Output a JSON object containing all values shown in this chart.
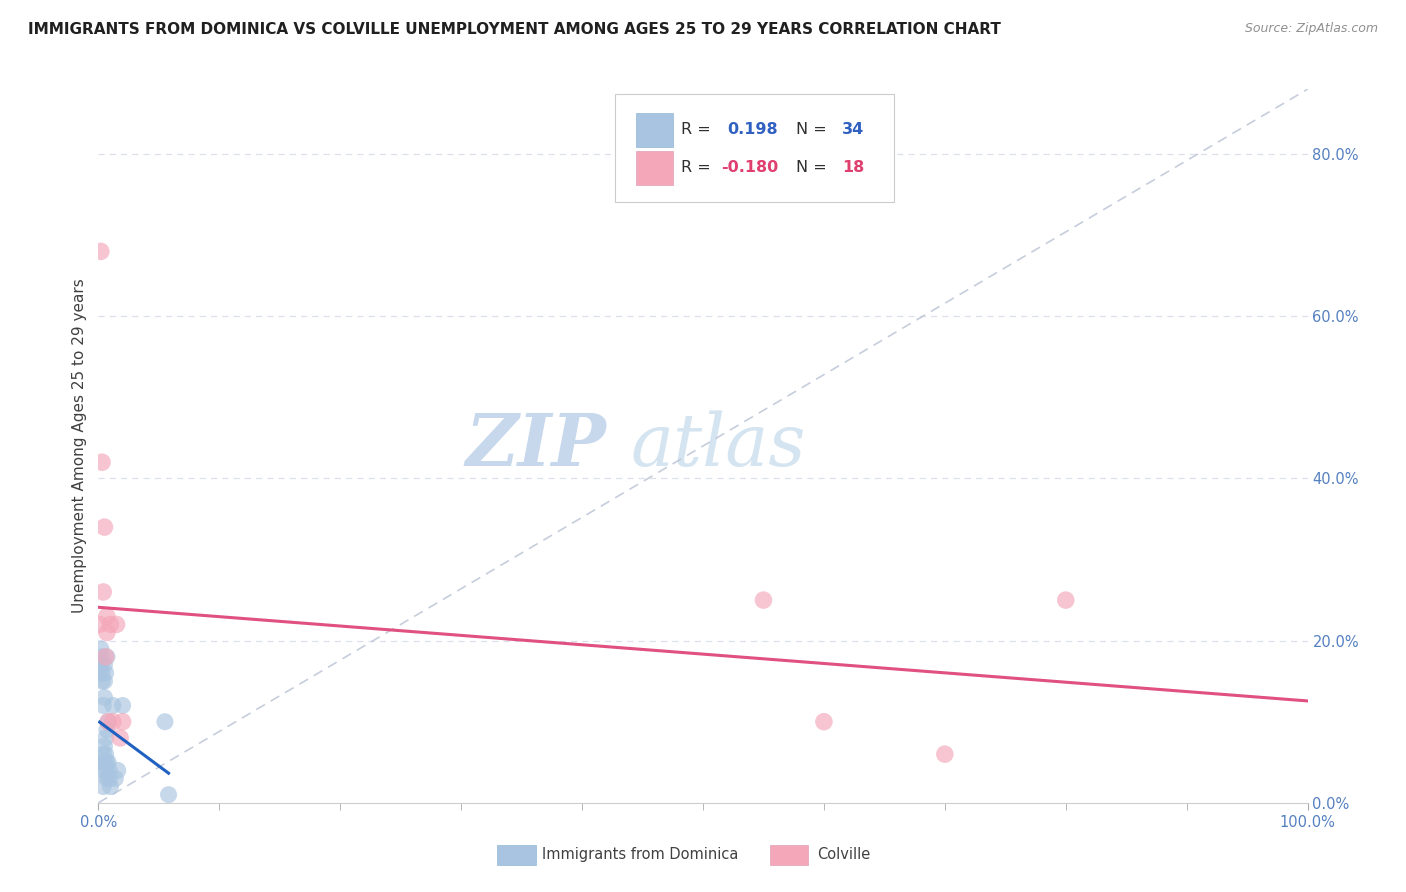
{
  "title": "IMMIGRANTS FROM DOMINICA VS COLVILLE UNEMPLOYMENT AMONG AGES 25 TO 29 YEARS CORRELATION CHART",
  "source": "Source: ZipAtlas.com",
  "ylabel": "Unemployment Among Ages 25 to 29 years",
  "xlim": [
    0,
    1.0
  ],
  "ylim": [
    0,
    0.88
  ],
  "xtick_positions": [
    0.0,
    1.0
  ],
  "xticklabels": [
    "0.0%",
    "100.0%"
  ],
  "ytick_positions": [
    0.0,
    0.2,
    0.4,
    0.6,
    0.8
  ],
  "yticklabels_right": [
    "0.0%",
    "20.0%",
    "40.0%",
    "60.0%",
    "80.0%"
  ],
  "blue_R": 0.198,
  "blue_N": 34,
  "pink_R": -0.18,
  "pink_N": 18,
  "blue_color": "#a8c4e0",
  "pink_color": "#f4a7b9",
  "blue_line_color": "#2060c0",
  "pink_line_color": "#e05080",
  "ref_line_color": "#c0c8d8",
  "grid_color": "#dde0ea",
  "background_color": "#ffffff",
  "title_fontsize": 11,
  "source_fontsize": 9,
  "watermark_zip": "ZIP",
  "watermark_atlas": "atlas",
  "watermark_color": "#c8d8ec",
  "blue_scatter_x": [
    0.001,
    0.002,
    0.002,
    0.003,
    0.003,
    0.003,
    0.004,
    0.004,
    0.004,
    0.004,
    0.005,
    0.005,
    0.005,
    0.005,
    0.005,
    0.006,
    0.006,
    0.006,
    0.006,
    0.007,
    0.007,
    0.007,
    0.007,
    0.008,
    0.008,
    0.009,
    0.009,
    0.01,
    0.012,
    0.014,
    0.016,
    0.02,
    0.055,
    0.058
  ],
  "blue_scatter_y": [
    0.04,
    0.17,
    0.19,
    0.15,
    0.16,
    0.18,
    0.02,
    0.05,
    0.06,
    0.12,
    0.05,
    0.07,
    0.13,
    0.15,
    0.17,
    0.04,
    0.06,
    0.08,
    0.16,
    0.03,
    0.05,
    0.09,
    0.18,
    0.05,
    0.1,
    0.03,
    0.04,
    0.02,
    0.12,
    0.03,
    0.04,
    0.12,
    0.1,
    0.01
  ],
  "pink_scatter_x": [
    0.001,
    0.002,
    0.003,
    0.004,
    0.005,
    0.006,
    0.007,
    0.007,
    0.008,
    0.01,
    0.012,
    0.015,
    0.018,
    0.02,
    0.55,
    0.6,
    0.7,
    0.8
  ],
  "pink_scatter_y": [
    0.22,
    0.68,
    0.42,
    0.26,
    0.34,
    0.18,
    0.21,
    0.23,
    0.1,
    0.22,
    0.1,
    0.22,
    0.08,
    0.1,
    0.25,
    0.1,
    0.06,
    0.25
  ]
}
